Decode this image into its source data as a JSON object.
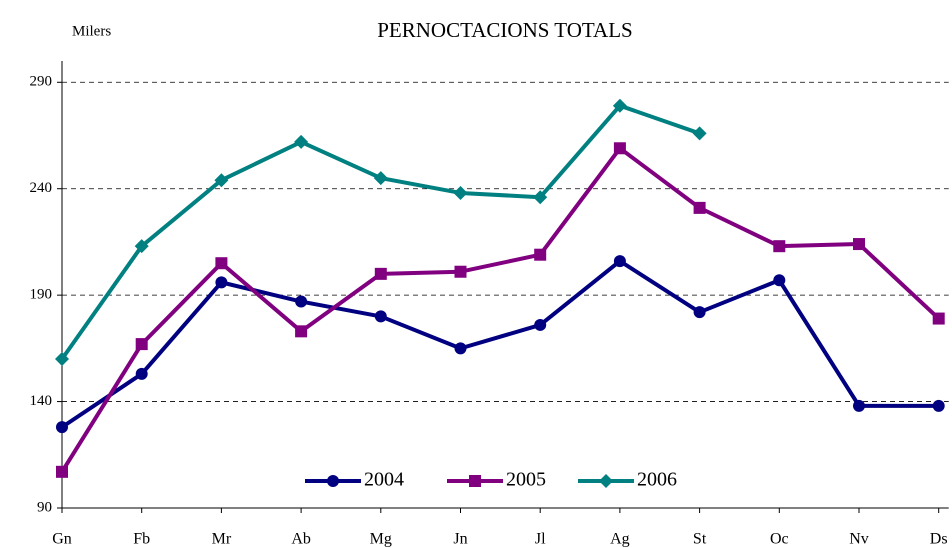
{
  "chart_data": {
    "type": "line",
    "title": "PERNOCTACIONS TOTALS",
    "y_label": "Milers",
    "categories": [
      "Gn",
      "Fb",
      "Mr",
      "Ab",
      "Mg",
      "Jn",
      "Jl",
      "Ag",
      "St",
      "Oc",
      "Nv",
      "Ds"
    ],
    "series": [
      {
        "name": "2004",
        "color": "#000080",
        "marker": "circle",
        "values": [
          128,
          153,
          196,
          187,
          180,
          165,
          176,
          206,
          182,
          197,
          138,
          138
        ]
      },
      {
        "name": "2005",
        "color": "#800080",
        "marker": "square",
        "values": [
          107,
          167,
          205,
          173,
          200,
          201,
          209,
          259,
          231,
          213,
          214,
          179
        ]
      },
      {
        "name": "2006",
        "color": "#008080",
        "marker": "diamond",
        "values": [
          160,
          213,
          244,
          262,
          245,
          238,
          236,
          279,
          266,
          null,
          null,
          null
        ]
      }
    ],
    "ylim": [
      90,
      300
    ],
    "yticks": [
      90,
      140,
      190,
      240,
      290
    ],
    "grid": true,
    "legend": "bottom"
  }
}
